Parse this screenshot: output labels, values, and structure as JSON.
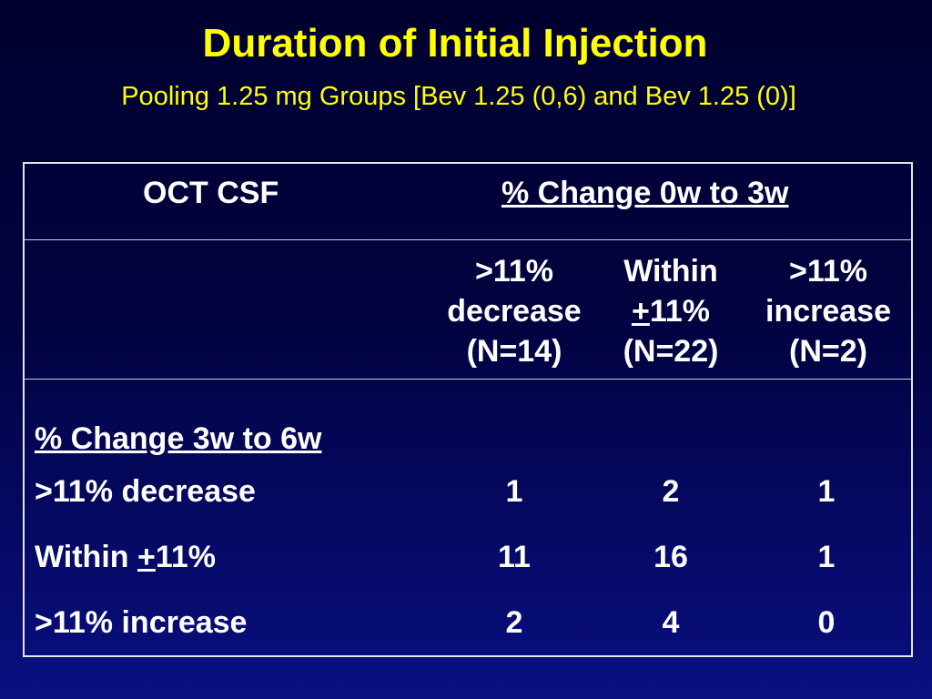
{
  "title": "Duration of Initial Injection",
  "subtitle": "Pooling 1.25 mg Groups [Bev 1.25 (0,6) and Bev 1.25 (0)]",
  "colors": {
    "background_top": "#00002e",
    "background_bottom": "#090f80",
    "title_text": "#ffff00",
    "table_text": "#ffffff",
    "border": "#e6e6e6"
  },
  "table": {
    "header": {
      "row_label": "OCT CSF",
      "group_label": "% Change 0w to 3w"
    },
    "columns": [
      {
        "line1": ">11%",
        "line2": "decrease",
        "line3": "(N=14)"
      },
      {
        "line1": "Within",
        "line2_plusminus": "+",
        "line2_rest": "11%",
        "line3": "(N=22)"
      },
      {
        "line1": ">11%",
        "line2": "increase",
        "line3": "(N=2)"
      }
    ],
    "row_group_label": "% Change 3w to 6w",
    "rows": [
      {
        "label": ">11% decrease",
        "values": [
          "1",
          "2",
          "1"
        ]
      },
      {
        "label_pre": "Within ",
        "label_plusminus": "+",
        "label_post": "11%",
        "values": [
          "11",
          "16",
          "1"
        ]
      },
      {
        "label": ">11% increase",
        "values": [
          "2",
          "4",
          "0"
        ]
      }
    ]
  }
}
